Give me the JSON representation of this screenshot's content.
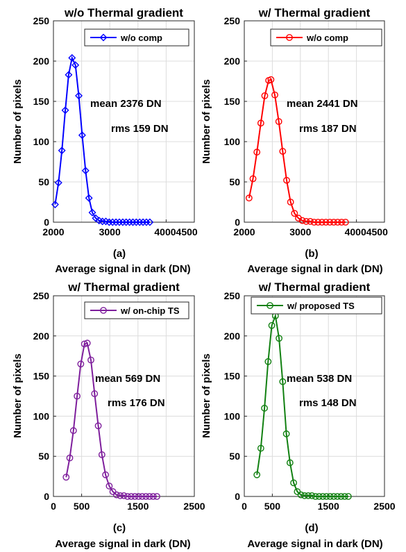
{
  "chart_data": [
    {
      "type": "line",
      "panel_label": "(a)",
      "title": "w/o Thermal gradient",
      "xlabel": "Average signal in dark (DN)",
      "ylabel": "Number of pixels",
      "xlim": [
        2000,
        4500
      ],
      "ylim": [
        0,
        250
      ],
      "xticks": [
        "2000",
        "3000",
        "40004500"
      ],
      "xtick_values": [
        2000,
        3000,
        4000
      ],
      "yticks": [
        "0",
        "50",
        "100",
        "150",
        "200",
        "250"
      ],
      "ytick_values": [
        0,
        50,
        100,
        150,
        200,
        250
      ],
      "grid": true,
      "legend_position": "top-right",
      "annotations": [
        "mean 2376 DN",
        "rms 159 DN"
      ],
      "series": [
        {
          "name": "w/o comp",
          "color": "#0000ff",
          "marker": "diamond",
          "x": [
            2030,
            2090,
            2150,
            2210,
            2270,
            2330,
            2390,
            2450,
            2510,
            2570,
            2630,
            2690,
            2750,
            2810,
            2870,
            2930,
            2990,
            3050,
            3110,
            3170,
            3230,
            3290,
            3350,
            3410,
            3470,
            3530,
            3590,
            3650,
            3710
          ],
          "y": [
            22,
            49,
            89,
            139,
            183,
            204,
            195,
            157,
            108,
            64,
            30,
            12,
            5,
            2,
            1,
            1,
            0,
            0,
            0,
            0,
            0,
            0,
            0,
            0,
            0,
            0,
            0,
            0,
            0
          ]
        }
      ]
    },
    {
      "type": "line",
      "panel_label": "(b)",
      "title": "w/ Thermal gradient",
      "xlabel": "Average signal in dark (DN)",
      "ylabel": "Number of pixels",
      "xlim": [
        2000,
        4500
      ],
      "ylim": [
        0,
        250
      ],
      "xticks": [
        "2000",
        "3000",
        "40004500"
      ],
      "xtick_values": [
        2000,
        3000,
        4000
      ],
      "yticks": [
        "0",
        "50",
        "100",
        "150",
        "200",
        "250"
      ],
      "ytick_values": [
        0,
        50,
        100,
        150,
        200,
        250
      ],
      "grid": true,
      "legend_position": "top-right",
      "annotations": [
        "mean 2441 DN",
        "rms 187 DN"
      ],
      "series": [
        {
          "name": "w/o comp",
          "color": "#ff0000",
          "marker": "circle",
          "x": [
            2085,
            2155,
            2225,
            2295,
            2365,
            2435,
            2475,
            2545,
            2615,
            2685,
            2755,
            2825,
            2895,
            2965,
            3035,
            3105,
            3175,
            3245,
            3315,
            3385,
            3455,
            3525,
            3595,
            3665,
            3735,
            3805
          ],
          "y": [
            30,
            54,
            87,
            123,
            157,
            176,
            177,
            158,
            125,
            88,
            52,
            25,
            11,
            5,
            2,
            1,
            1,
            0,
            0,
            0,
            0,
            0,
            0,
            0,
            0,
            0
          ]
        }
      ]
    },
    {
      "type": "line",
      "panel_label": "(c)",
      "title": "w/ Thermal gradient",
      "xlabel": "Average signal in dark (DN)",
      "ylabel": "Number of pixels",
      "xlim": [
        0,
        2500
      ],
      "ylim": [
        0,
        250
      ],
      "xticks": [
        "0",
        "500",
        "1500",
        "2500"
      ],
      "xtick_values": [
        0,
        500,
        1500,
        2500
      ],
      "yticks": [
        "0",
        "50",
        "100",
        "150",
        "200",
        "250"
      ],
      "ytick_values": [
        0,
        50,
        100,
        150,
        200,
        250
      ],
      "grid": true,
      "legend_position": "top-right",
      "annotations": [
        "mean 569 DN",
        "rms 176 DN"
      ],
      "series": [
        {
          "name": "w/ on-chip TS",
          "color": "#7e1e9c",
          "marker": "circle",
          "x": [
            225,
            290,
            355,
            420,
            485,
            550,
            600,
            665,
            730,
            795,
            860,
            925,
            990,
            1055,
            1120,
            1185,
            1250,
            1315,
            1380,
            1445,
            1510,
            1575,
            1640,
            1705,
            1770,
            1835
          ],
          "y": [
            24,
            48,
            82,
            125,
            165,
            190,
            191,
            170,
            128,
            88,
            52,
            27,
            13,
            6,
            2,
            1,
            1,
            0,
            0,
            0,
            0,
            0,
            0,
            0,
            0,
            0
          ]
        }
      ]
    },
    {
      "type": "line",
      "panel_label": "(d)",
      "title": "w/ Thermal gradient",
      "xlabel": "Average signal in dark (DN)",
      "ylabel": "Number of pixels",
      "xlim": [
        0,
        2500
      ],
      "ylim": [
        0,
        250
      ],
      "xticks": [
        "0",
        "500",
        "1500",
        "2500"
      ],
      "xtick_values": [
        0,
        500,
        1500,
        2500
      ],
      "yticks": [
        "0",
        "50",
        "100",
        "150",
        "200",
        "250"
      ],
      "ytick_values": [
        0,
        50,
        100,
        150,
        200,
        250
      ],
      "grid": true,
      "legend_position": "top-right",
      "annotations": [
        "mean 538 DN",
        "rms 148 DN"
      ],
      "series": [
        {
          "name": "w/ proposed TS",
          "color": "#118011",
          "marker": "circle",
          "x": [
            225,
            295,
            360,
            425,
            490,
            555,
            620,
            685,
            750,
            815,
            880,
            945,
            1010,
            1075,
            1140,
            1205,
            1270,
            1335,
            1400,
            1465,
            1530,
            1595,
            1660,
            1725,
            1790,
            1855
          ],
          "y": [
            27,
            60,
            110,
            168,
            213,
            225,
            197,
            143,
            78,
            42,
            17,
            6,
            2,
            1,
            1,
            1,
            0,
            0,
            0,
            0,
            0,
            0,
            0,
            0,
            0,
            0
          ]
        }
      ]
    }
  ]
}
